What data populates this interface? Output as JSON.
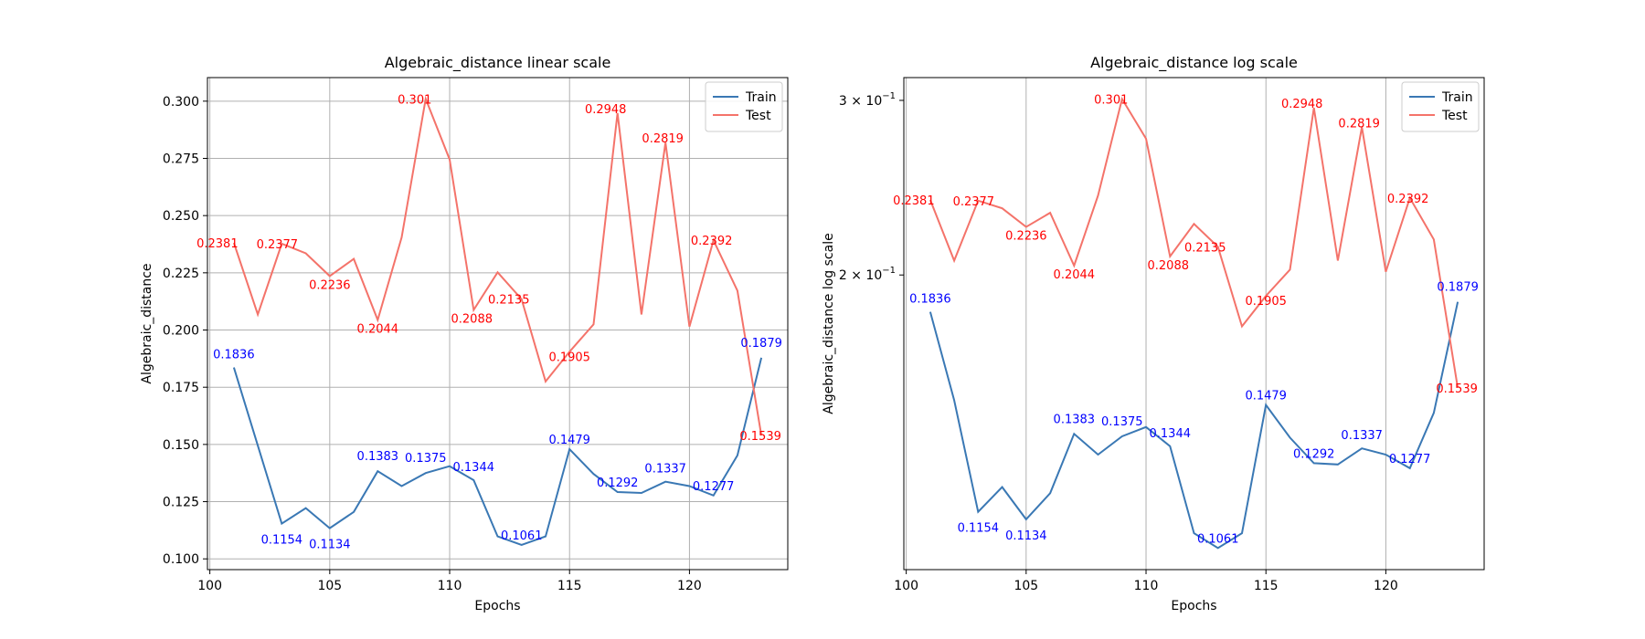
{
  "colors": {
    "train": "#3a78b4",
    "test": "#f4736a",
    "train_label": "#0000ff",
    "test_label": "#ff0000",
    "grid": "#b0b0b0"
  },
  "chart_data": [
    {
      "type": "line",
      "title": "Algebraic_distance linear scale",
      "xlabel": "Epochs",
      "ylabel": "Algebraic_distance",
      "scale": "linear",
      "xlim": [
        99.9,
        124.1
      ],
      "ylim": [
        0.0953,
        0.3103
      ],
      "xticks": [
        "100",
        "105",
        "110",
        "115",
        "120"
      ],
      "yticks": [
        "0.100",
        "0.125",
        "0.150",
        "0.175",
        "0.200",
        "0.225",
        "0.250",
        "0.275",
        "0.300"
      ],
      "grid": true,
      "legend": "top-right",
      "x": [
        101,
        102,
        103,
        104,
        105,
        106,
        107,
        108,
        109,
        110,
        111,
        112,
        113,
        114,
        115,
        116,
        117,
        118,
        119,
        120,
        121,
        122,
        123
      ],
      "series": [
        {
          "name": "Train",
          "values": [
            0.1836,
            0.1495,
            0.1154,
            0.1222,
            0.1134,
            0.1205,
            0.1383,
            0.1318,
            0.1375,
            0.1405,
            0.1344,
            0.1098,
            0.1061,
            0.1098,
            0.1479,
            0.1371,
            0.1292,
            0.1288,
            0.1337,
            0.1318,
            0.1277,
            0.1452,
            0.1879
          ],
          "labels": [
            "0.1836",
            "",
            "0.1154",
            "",
            "0.1134",
            "",
            "0.1383",
            "",
            "0.1375",
            "",
            "0.1344",
            "",
            "0.1061",
            "",
            "0.1479",
            "",
            "0.1292",
            "",
            "0.1337",
            "",
            "0.1277",
            "",
            "0.1879"
          ]
        },
        {
          "name": "Test",
          "values": [
            0.2381,
            0.2068,
            0.2377,
            0.2335,
            0.2236,
            0.2311,
            0.2044,
            0.2405,
            0.301,
            0.2745,
            0.2088,
            0.2252,
            0.2135,
            0.1775,
            0.1905,
            0.2025,
            0.2948,
            0.2068,
            0.2819,
            0.2015,
            0.2392,
            0.2172,
            0.1539
          ],
          "labels": [
            "0.2381",
            "",
            "0.2377",
            "",
            "0.2236",
            "",
            "0.2044",
            "",
            "0.301",
            "",
            "0.2088",
            "",
            "0.2135",
            "",
            "0.1905",
            "",
            "0.2948",
            "",
            "0.2819",
            "",
            "0.2392",
            "",
            "0.1539"
          ]
        }
      ]
    },
    {
      "type": "line",
      "title": "Algebraic_distance log scale",
      "xlabel": "Epochs",
      "ylabel": "Algebraic_distance log scale",
      "scale": "log",
      "xlim": [
        99.9,
        124.1
      ],
      "ylim": [
        0.1009,
        0.3163
      ],
      "xticks": [
        "100",
        "105",
        "110",
        "115",
        "120"
      ],
      "yticks": [
        {
          "value": 0.3,
          "mantissa": "3",
          "exponent": "−1"
        },
        {
          "value": 0.2,
          "mantissa": "2",
          "exponent": "−1"
        }
      ],
      "grid": "x-only",
      "legend": "top-right",
      "x": [
        101,
        102,
        103,
        104,
        105,
        106,
        107,
        108,
        109,
        110,
        111,
        112,
        113,
        114,
        115,
        116,
        117,
        118,
        119,
        120,
        121,
        122,
        123
      ],
      "series": [
        {
          "name": "Train",
          "values": [
            0.1836,
            0.1495,
            0.1154,
            0.1222,
            0.1134,
            0.1205,
            0.1383,
            0.1318,
            0.1375,
            0.1405,
            0.1344,
            0.1098,
            0.1061,
            0.1098,
            0.1479,
            0.1371,
            0.1292,
            0.1288,
            0.1337,
            0.1318,
            0.1277,
            0.1452,
            0.1879
          ],
          "labels": [
            "0.1836",
            "",
            "0.1154",
            "",
            "0.1134",
            "",
            "0.1383",
            "",
            "0.1375",
            "",
            "0.1344",
            "",
            "0.1061",
            "",
            "0.1479",
            "",
            "0.1292",
            "",
            "0.1337",
            "",
            "0.1277",
            "",
            "0.1879"
          ]
        },
        {
          "name": "Test",
          "values": [
            0.2381,
            0.2068,
            0.2377,
            0.2335,
            0.2236,
            0.2311,
            0.2044,
            0.2405,
            0.301,
            0.2745,
            0.2088,
            0.2252,
            0.2135,
            0.1775,
            0.1905,
            0.2025,
            0.2948,
            0.2068,
            0.2819,
            0.2015,
            0.2392,
            0.2172,
            0.1539
          ],
          "labels": [
            "0.2381",
            "",
            "0.2377",
            "",
            "0.2236",
            "",
            "0.2044",
            "",
            "0.301",
            "",
            "0.2088",
            "",
            "0.2135",
            "",
            "0.1905",
            "",
            "0.2948",
            "",
            "0.2819",
            "",
            "0.2392",
            "",
            "0.1539"
          ]
        }
      ]
    }
  ]
}
